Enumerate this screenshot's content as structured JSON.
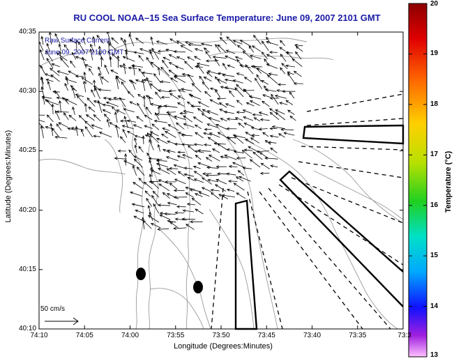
{
  "title": "RU COOL  NOAA–15  Sea Surface Temperature:  June 09, 2007 2101 GMT",
  "axes": {
    "xlabel": "Longitude (Degrees:Minutes)",
    "ylabel": "Latitude (Degrees:Minutes)",
    "x_ticks": [
      "74:10",
      "74:05",
      "74:00",
      "73:55",
      "73:50",
      "73:45",
      "73:40",
      "73:35",
      "73:3"
    ],
    "y_ticks": [
      "40:35",
      "40:30",
      "40:25",
      "40:20",
      "40:15",
      "40:10"
    ]
  },
  "inset": {
    "line1": "Raw Surface Current",
    "line2": "June 09, 2007 2100 GMT"
  },
  "scale_bar": {
    "label": "50 cm/s"
  },
  "colorbar": {
    "label": "Temperature (°C)",
    "ticks": [
      "20",
      "19",
      "18",
      "17",
      "16",
      "15",
      "14",
      "13"
    ],
    "min": 13,
    "max": 20
  },
  "colors": {
    "title": "#1a1aa6",
    "contour": "#9a9a9a",
    "frame": "#000000"
  }
}
